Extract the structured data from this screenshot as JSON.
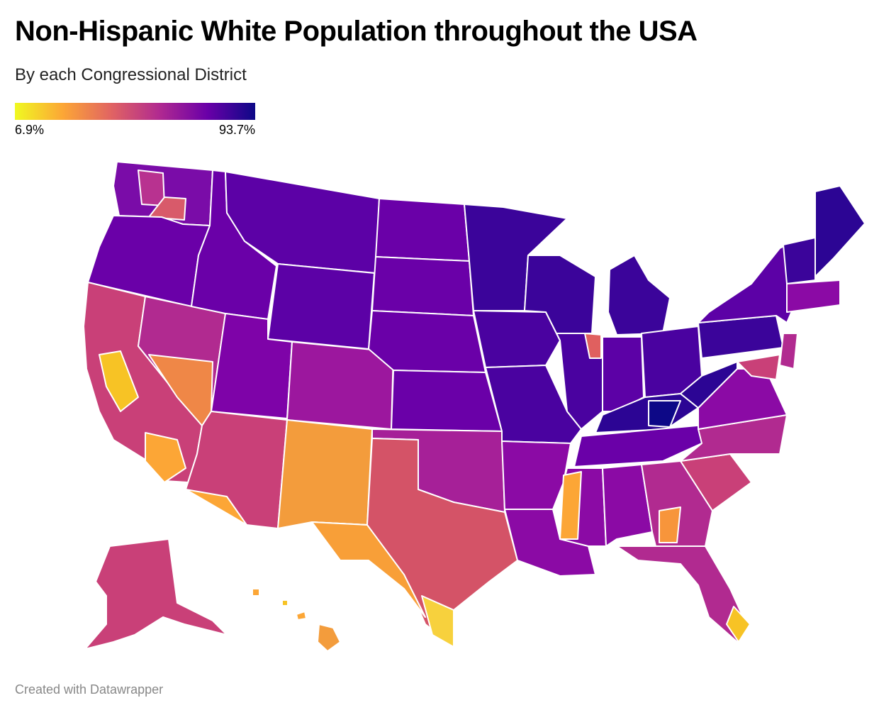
{
  "title": "Non-Hispanic White Population throughout the USA",
  "subtitle": "By each Congressional District",
  "legend": {
    "min_label": "6.9%",
    "max_label": "93.7%"
  },
  "footer": "Created with Datawrapper",
  "colors": {
    "scale": [
      "#f0f921",
      "#fca636",
      "#e16462",
      "#b12a90",
      "#6a00a8",
      "#0d0887"
    ],
    "border": "#ffffff"
  }
}
